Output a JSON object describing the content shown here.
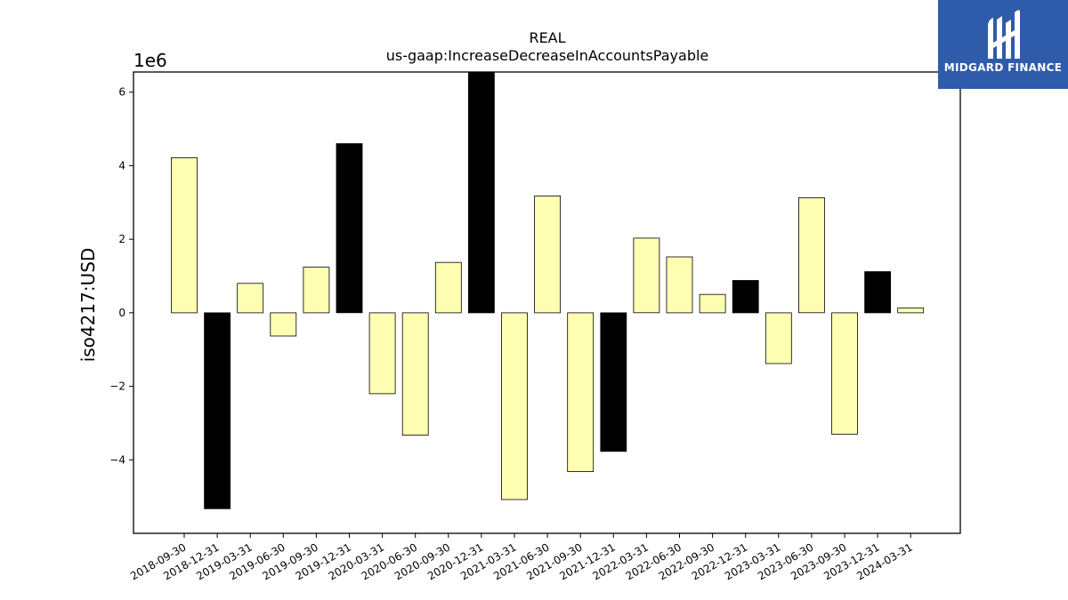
{
  "chart_data": {
    "type": "bar",
    "title": "REAL",
    "subtitle": "us-gaap:IncreaseDecreaseInAccountsPayable",
    "ylabel": "iso4217:USD",
    "xlabel": "",
    "offset_label": "1e6",
    "ylim": [
      -6.0,
      6.55
    ],
    "yticks": [
      -4,
      -2,
      0,
      2,
      4,
      6
    ],
    "ytick_labels": [
      "−4",
      "−2",
      "0",
      "2",
      "4",
      "6"
    ],
    "grid": false,
    "categories": [
      "2018-09-30",
      "2018-12-31",
      "2019-03-31",
      "2019-06-30",
      "2019-09-30",
      "2019-12-31",
      "2020-03-31",
      "2020-06-30",
      "2020-09-30",
      "2020-12-31",
      "2021-03-31",
      "2021-06-30",
      "2021-09-30",
      "2021-12-31",
      "2022-03-31",
      "2022-06-30",
      "2022-09-30",
      "2022-12-31",
      "2023-03-31",
      "2023-06-30",
      "2023-09-30",
      "2023-12-31",
      "2024-03-31"
    ],
    "values": [
      4.22,
      -5.33,
      0.8,
      -0.63,
      1.24,
      4.6,
      -2.2,
      -3.33,
      1.37,
      6.6,
      -5.08,
      3.18,
      -4.32,
      -3.77,
      2.03,
      1.52,
      0.5,
      0.88,
      -1.38,
      3.13,
      -3.3,
      1.12,
      0.13
    ],
    "bar_types": [
      "q",
      "fy",
      "q",
      "q",
      "q",
      "fy",
      "q",
      "q",
      "q",
      "fy",
      "q",
      "q",
      "q",
      "fy",
      "q",
      "q",
      "q",
      "fy",
      "q",
      "q",
      "q",
      "fy",
      "q"
    ],
    "colors": {
      "q": "#ffffb3",
      "fy": "#000000",
      "edge": "#000000"
    }
  },
  "logo": {
    "text": "MIDGARD FINANCE",
    "background": "#2f5bab"
  }
}
